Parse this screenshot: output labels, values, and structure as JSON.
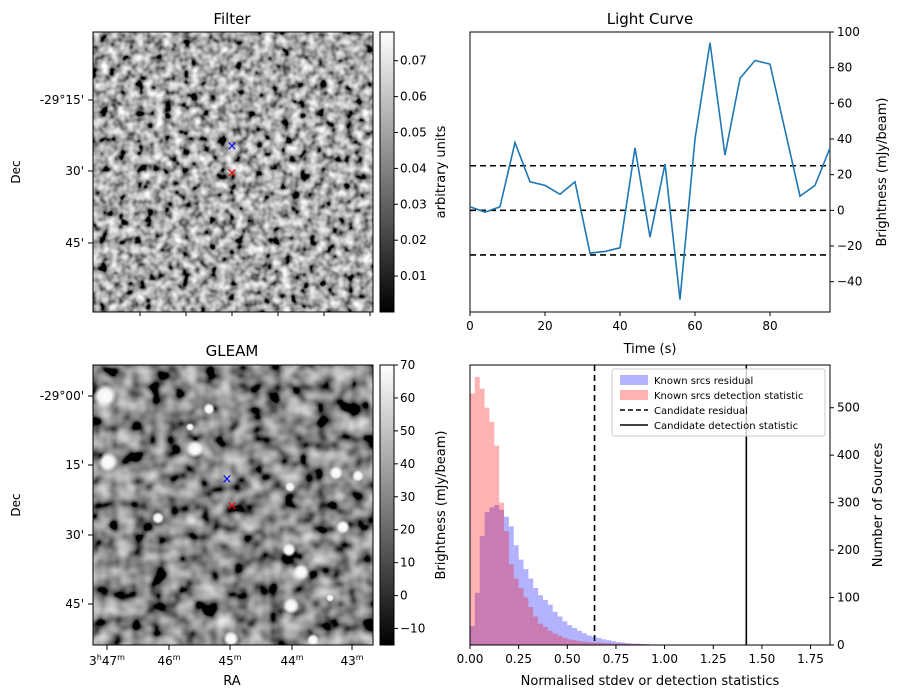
{
  "chart_data": [
    {
      "type": "heatmap",
      "title": "Filter",
      "ylabel": "Dec",
      "y_tick_labels": [
        "-29°15'",
        "30'",
        "45'"
      ],
      "colorbar": {
        "label": "arbitrary units",
        "range": [
          0.0,
          0.078
        ],
        "tick_labels": [
          "0.01",
          "0.02",
          "0.03",
          "0.04",
          "0.05",
          "0.06",
          "0.07"
        ],
        "colormap": "gray"
      },
      "markers": [
        {
          "symbol": "x",
          "color": "#0000ff"
        },
        {
          "symbol": "x",
          "color": "#ff0000"
        }
      ]
    },
    {
      "type": "line",
      "title": "Light Curve",
      "xlabel": "Time (s)",
      "ylabel": "Brightness (mJy/beam)",
      "xlim": [
        0,
        96
      ],
      "ylim": [
        -57,
        100
      ],
      "x_ticks": [
        0,
        20,
        40,
        60,
        80
      ],
      "y_ticks": [
        -40,
        -20,
        0,
        20,
        40,
        60,
        80,
        100
      ],
      "x": [
        0,
        4,
        8,
        12,
        16,
        20,
        24,
        28,
        32,
        36,
        40,
        44,
        48,
        52,
        56,
        60,
        64,
        68,
        72,
        76,
        80,
        84,
        88,
        92,
        96
      ],
      "values": [
        2,
        -1,
        2,
        38,
        16,
        14,
        9,
        16,
        -24,
        -23,
        -21,
        35,
        -15,
        26,
        -50,
        40,
        94,
        31,
        74,
        84,
        82,
        45,
        8,
        14,
        35
      ],
      "color": "#1f77b4",
      "reference_lines": [
        25,
        0,
        -25
      ]
    },
    {
      "type": "heatmap",
      "title": "GLEAM",
      "xlabel": "RA",
      "ylabel": "Dec",
      "x_tick_labels": [
        {
          "h": "3",
          "hs": "h",
          "m": "47",
          "ms": "m"
        },
        {
          "h": "",
          "hs": "",
          "m": "46",
          "ms": "m"
        },
        {
          "h": "",
          "hs": "",
          "m": "45",
          "ms": "m"
        },
        {
          "h": "",
          "hs": "",
          "m": "44",
          "ms": "m"
        },
        {
          "h": "",
          "hs": "",
          "m": "43",
          "ms": "m"
        }
      ],
      "y_tick_labels": [
        "-29°00'",
        "15'",
        "30'",
        "45'"
      ],
      "colorbar": {
        "label": "Brightness (mJy/beam)",
        "range": [
          -15,
          70
        ],
        "tick_labels": [
          "−10",
          "0",
          "10",
          "20",
          "30",
          "40",
          "50",
          "60",
          "70"
        ],
        "colormap": "gray"
      },
      "markers": [
        {
          "symbol": "x",
          "color": "#0000ff"
        },
        {
          "symbol": "x",
          "color": "#ff0000"
        }
      ]
    },
    {
      "type": "bar",
      "xlabel": "Normalised stdev or detection statistics",
      "ylabel": "Number of Sources",
      "xlim": [
        0,
        1.85
      ],
      "ylim": [
        0,
        590
      ],
      "x_ticks": [
        "0.00",
        "0.25",
        "0.50",
        "0.75",
        "1.00",
        "1.25",
        "1.50",
        "1.75"
      ],
      "y_ticks": [
        0,
        100,
        200,
        300,
        400,
        500
      ],
      "bin_start": 0,
      "bin_width": 0.025,
      "series": [
        {
          "name": "Known srcs residual",
          "color": "#0000ff",
          "values": [
            40,
            110,
            230,
            280,
            290,
            295,
            285,
            270,
            250,
            210,
            180,
            160,
            140,
            120,
            105,
            95,
            85,
            70,
            60,
            50,
            42,
            36,
            30,
            25,
            20,
            18,
            15,
            12,
            10,
            8,
            6,
            5,
            4,
            3,
            3,
            2,
            2,
            1,
            1,
            1
          ]
        },
        {
          "name": "Known srcs detection statistic",
          "color": "#ff0000",
          "values": [
            530,
            565,
            540,
            500,
            470,
            420,
            300,
            240,
            170,
            140,
            120,
            100,
            80,
            60,
            45,
            38,
            30,
            24,
            19,
            15,
            12,
            10,
            8,
            7,
            6,
            5,
            5,
            4,
            4,
            3,
            3,
            3,
            2,
            2,
            2,
            2,
            1,
            1,
            1,
            1
          ]
        }
      ],
      "vlines": [
        {
          "name": "Candidate residual",
          "x": 0.64,
          "style": "dashed"
        },
        {
          "name": "Candidate detection statistic",
          "x": 1.42,
          "style": "solid"
        }
      ],
      "legend": "top-right"
    }
  ]
}
